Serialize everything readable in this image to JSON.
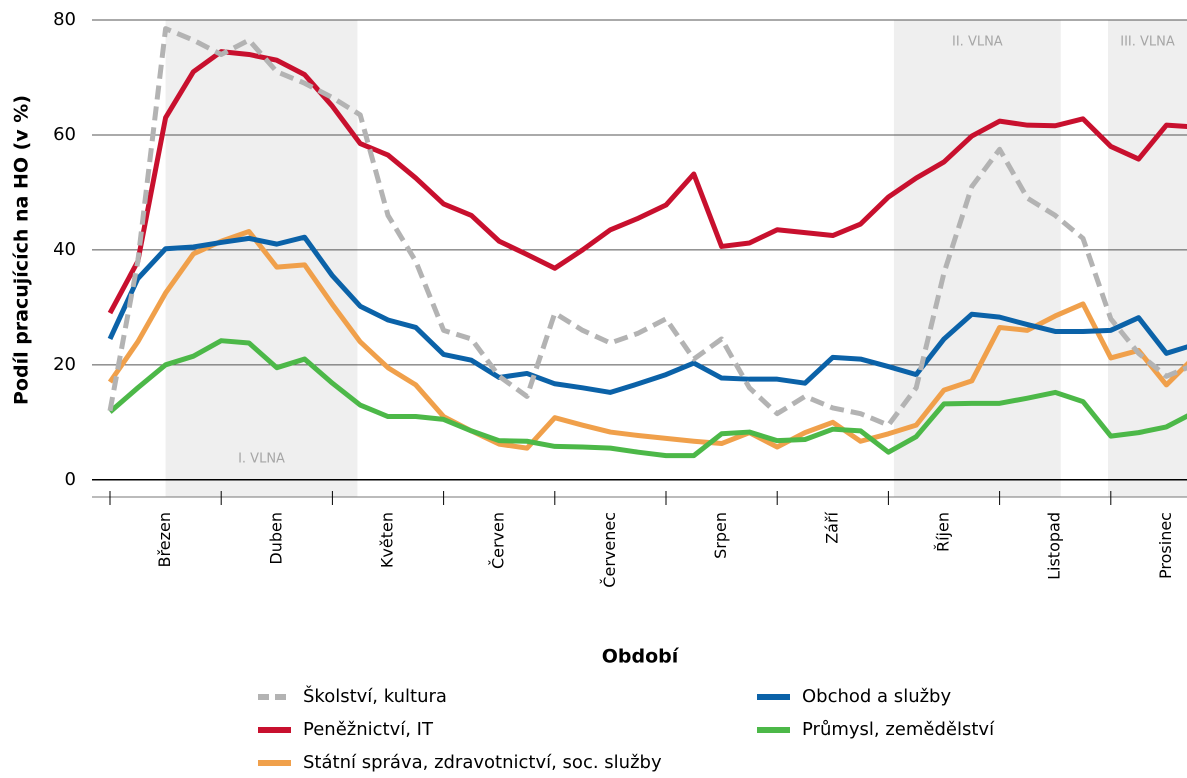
{
  "chart_data": {
    "type": "line",
    "x_label": "Období",
    "y_label": "Podíl pracujících na HO (v %)",
    "categories": [
      null,
      null,
      "Březen",
      null,
      null,
      null,
      "Duben",
      null,
      null,
      null,
      "Květen",
      null,
      null,
      null,
      "Červen",
      null,
      null,
      null,
      "Červenec",
      null,
      null,
      null,
      "Srpen",
      null,
      null,
      null,
      "Září",
      null,
      null,
      null,
      "Říjen",
      null,
      null,
      null,
      "Listopad",
      null,
      null,
      null,
      "Prosinec",
      null
    ],
    "ylim": [
      -3,
      80
    ],
    "yticks": [
      0,
      20,
      40,
      60,
      80
    ],
    "grid": true,
    "bands": [
      {
        "label": "I. VLNA",
        "from": 2,
        "to": 8.9
      },
      {
        "label": "II. VLNA",
        "from": 28.2,
        "to": 34.2
      },
      {
        "label": "III. VLNA",
        "from": 35.9,
        "to": 39
      }
    ],
    "series": [
      {
        "name": "Školství, kultura",
        "color": "#b3b3b3",
        "dashed": true,
        "values": [
          12,
          38,
          78.5,
          76.5,
          74,
          76.5,
          71,
          69,
          66.5,
          63.5,
          46,
          38,
          26,
          24.5,
          18,
          14.5,
          29,
          26,
          23.8,
          25.5,
          28,
          21,
          24.5,
          16,
          11.5,
          14.5,
          12.5,
          11.5,
          9.5,
          16,
          36,
          51,
          57.5,
          49,
          46,
          42,
          28,
          22,
          18,
          20
        ]
      },
      {
        "name": "Obchod a služby",
        "color": "#0b62a8",
        "values": [
          24.5,
          35,
          40.2,
          40.5,
          41.3,
          42,
          41,
          42.2,
          35.5,
          30.2,
          27.8,
          26.5,
          21.8,
          20.8,
          17.8,
          18.5,
          16.7,
          16,
          15.2,
          16.7,
          18.3,
          20.3,
          17.7,
          17.5,
          17.5,
          16.8,
          21.3,
          21,
          19.7,
          18.3,
          24.5,
          28.8,
          28.3,
          27,
          25.8,
          25.8,
          26,
          28.2,
          22,
          23.5
        ]
      },
      {
        "name": "Peněžnictví, IT",
        "color": "#c8102e",
        "values": [
          29,
          38,
          63,
          71,
          74.5,
          74,
          73,
          70.5,
          65,
          58.5,
          56.5,
          52.5,
          48,
          46,
          41.5,
          39.2,
          36.8,
          40,
          43.5,
          45.5,
          47.8,
          53.2,
          40.6,
          41.2,
          43.5,
          43,
          42.5,
          44.5,
          49.2,
          52.5,
          55.3,
          59.8,
          62.4,
          61.7,
          61.6,
          62.8,
          58,
          55.8,
          61.7,
          61.4
        ]
      },
      {
        "name": "Průmysl, zemědělství",
        "color": "#4cb848",
        "values": [
          11.8,
          16,
          20,
          21.5,
          24.2,
          23.8,
          19.5,
          21,
          16.8,
          13,
          11,
          11,
          10.5,
          8.5,
          6.8,
          6.7,
          5.8,
          5.7,
          5.5,
          4.8,
          4.2,
          4.2,
          8,
          8.3,
          6.8,
          7,
          8.8,
          8.5,
          4.8,
          7.5,
          13.2,
          13.3,
          13.3,
          14.2,
          15.2,
          13.6,
          7.6,
          8.2,
          9.2,
          11.7
        ]
      },
      {
        "name": "Státní správa, zdravotnictví, soc. služby",
        "color": "#f0a04b",
        "values": [
          17,
          24,
          32.5,
          39.3,
          41.5,
          43.2,
          37,
          37.4,
          30.5,
          24,
          19.5,
          16.5,
          11,
          8.5,
          6.2,
          5.5,
          10.8,
          9.5,
          8.3,
          7.7,
          7.2,
          6.7,
          6.3,
          8.2,
          5.7,
          8.2,
          10,
          6.7,
          8,
          9.5,
          15.6,
          17.2,
          26.5,
          26,
          28.5,
          30.6,
          21.2,
          22.5,
          16.5,
          21.3
        ]
      }
    ]
  }
}
